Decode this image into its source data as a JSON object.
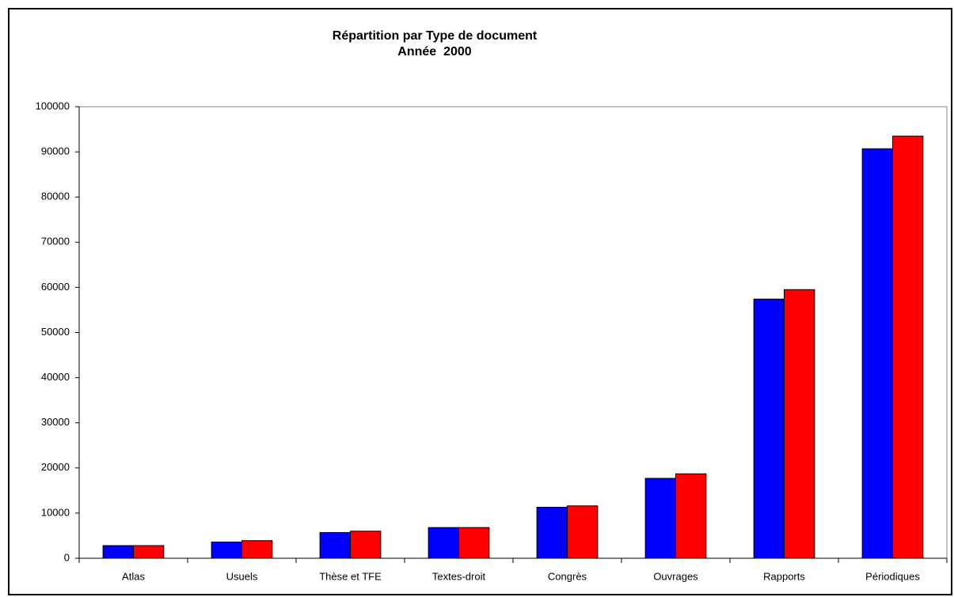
{
  "chart_data": {
    "type": "bar",
    "title": "Répartition par Type de document",
    "subtitle": "Année  2000",
    "categories": [
      "Atlas",
      "Usuels",
      "Thèse et TFE",
      "Textes-droit",
      "Congrès",
      "Ouvrages",
      "Rapports",
      "Périodiques"
    ],
    "series": [
      {
        "color": "#0000ff",
        "values": [
          2800,
          3600,
          5700,
          6800,
          11300,
          17700,
          57400,
          90700
        ]
      },
      {
        "color": "#ff0000",
        "values": [
          2800,
          3900,
          6000,
          6800,
          11600,
          18700,
          59500,
          93500
        ]
      }
    ],
    "ylim": [
      0,
      100000
    ],
    "yticks": [
      0,
      10000,
      20000,
      30000,
      40000,
      50000,
      60000,
      70000,
      80000,
      90000,
      100000
    ]
  }
}
